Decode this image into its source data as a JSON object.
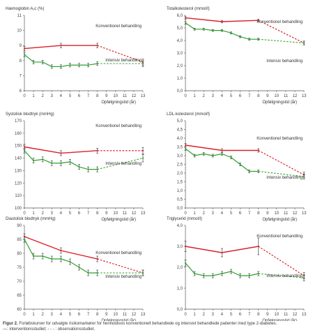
{
  "colors": {
    "konventionel": "#d9202a",
    "intensiv": "#2ca02c",
    "axis": "#555555",
    "errorbar": "#333333"
  },
  "caption": {
    "label": "Figur 2.",
    "text": "Forløbskurver for udvalgte risikomarkører for henholdsvis konventionelt behandlede og intensivt behandlede patienter med type 2-diabetes.",
    "legend_line2": "—: interventionsstudiet; - - - : observationsstudiet."
  },
  "chart_data": [
    {
      "type": "line",
      "title": "Hæmoglobin A₁c (%)",
      "xlabel": "Opfølgningstid (år)",
      "x_ticks": [
        0,
        1,
        2,
        3,
        4,
        5,
        6,
        7,
        8,
        9,
        10,
        11,
        12,
        13
      ],
      "xlim": [
        0,
        13
      ],
      "ylim": [
        6,
        11
      ],
      "y_ticks": [
        "6",
        "7",
        "8",
        "9",
        "10",
        "11"
      ],
      "y_tick_values": [
        6,
        7,
        8,
        9,
        10,
        11
      ],
      "series": [
        {
          "name": "Konventionel behandling",
          "key": "konv",
          "x": [
            0,
            4,
            8,
            13
          ],
          "y": [
            8.8,
            9.0,
            9.0,
            7.9
          ],
          "err": [
            0.15,
            0.15,
            0.15,
            0.2
          ],
          "solid_until": 8
        },
        {
          "name": "Intensiv behandling",
          "key": "int",
          "x": [
            0,
            1,
            2,
            3,
            4,
            5,
            6,
            7,
            8,
            13
          ],
          "y": [
            8.4,
            7.9,
            7.9,
            7.6,
            7.6,
            7.7,
            7.7,
            7.7,
            7.8,
            7.8
          ],
          "err": [
            0.15,
            0.12,
            0.12,
            0.12,
            0.12,
            0.12,
            0.12,
            0.12,
            0.12,
            0.2
          ],
          "solid_until": 8
        }
      ]
    },
    {
      "type": "line",
      "title": "Totalkolesterol (mmol/l)",
      "xlabel": "Opfølgningstid (år)",
      "x_ticks": [
        0,
        1,
        2,
        3,
        4,
        5,
        6,
        7,
        8,
        9,
        10,
        11,
        12,
        13
      ],
      "xlim": [
        0,
        13
      ],
      "ylim": [
        0,
        6.0
      ],
      "y_ticks": [
        "0,0",
        "1,0",
        "2,0",
        "3,0",
        "4,0",
        "5,0",
        "6,0"
      ],
      "y_tick_values": [
        0,
        1,
        2,
        3,
        4,
        5,
        6
      ],
      "series": [
        {
          "name": "Konventionel behandling",
          "key": "konv",
          "x": [
            0,
            4,
            8,
            13
          ],
          "y": [
            5.8,
            5.5,
            5.6,
            3.8
          ],
          "err": [
            0.1,
            0.1,
            0.1,
            0.15
          ],
          "solid_until": 8
        },
        {
          "name": "Intensiv behandling",
          "key": "int",
          "x": [
            0,
            1,
            2,
            3,
            4,
            5,
            6,
            7,
            8,
            13
          ],
          "y": [
            5.4,
            4.9,
            4.9,
            4.8,
            4.8,
            4.6,
            4.3,
            4.1,
            4.1,
            3.8
          ],
          "err": [
            0.12,
            0.08,
            0.08,
            0.08,
            0.08,
            0.08,
            0.08,
            0.08,
            0.08,
            0.15
          ],
          "solid_until": 8
        }
      ]
    },
    {
      "type": "line",
      "title": "Systolisk blodtryk (mmHg)",
      "xlabel": "Opfølgningstid (år)",
      "x_ticks": [
        0,
        1,
        2,
        3,
        4,
        5,
        6,
        7,
        8,
        9,
        10,
        11,
        12,
        13
      ],
      "xlim": [
        0,
        13
      ],
      "ylim": [
        100,
        170
      ],
      "y_ticks": [
        "100",
        "110",
        "120",
        "130",
        "140",
        "150",
        "160",
        "170"
      ],
      "y_tick_values": [
        100,
        110,
        120,
        130,
        140,
        150,
        160,
        170
      ],
      "series": [
        {
          "name": "Konventionel behandling",
          "key": "konv",
          "x": [
            0,
            4,
            8,
            13
          ],
          "y": [
            149,
            144,
            146,
            146
          ],
          "err": [
            2,
            2,
            2,
            2.5
          ],
          "solid_until": 8
        },
        {
          "name": "Intensiv behandling",
          "key": "int",
          "x": [
            0,
            1,
            2,
            3,
            4,
            5,
            6,
            7,
            8,
            13
          ],
          "y": [
            146,
            138,
            139,
            136,
            136,
            137,
            133,
            131,
            131,
            140
          ],
          "err": [
            2,
            2,
            2,
            2,
            2,
            2,
            2,
            2,
            2,
            3
          ],
          "solid_until": 8
        }
      ]
    },
    {
      "type": "line",
      "title": "LDL-kolesterol (mmol/l)",
      "xlabel": "Opfølgningstid (år)",
      "x_ticks": [
        0,
        1,
        2,
        3,
        4,
        5,
        6,
        7,
        8,
        9,
        10,
        11,
        12,
        13
      ],
      "xlim": [
        0,
        13
      ],
      "ylim": [
        0,
        5.0
      ],
      "y_ticks": [
        "0,0",
        "0,5",
        "1,0",
        "1,5",
        "2,0",
        "2,5",
        "3,0",
        "3,5",
        "4,0",
        "4,5",
        "5,0"
      ],
      "y_tick_values": [
        0,
        0.5,
        1,
        1.5,
        2,
        2.5,
        3,
        3.5,
        4,
        4.5,
        5
      ],
      "series": [
        {
          "name": "Konventionel behandling",
          "key": "konv",
          "x": [
            0,
            4,
            8,
            13
          ],
          "y": [
            3.6,
            3.3,
            3.3,
            1.9
          ],
          "err": [
            0.1,
            0.1,
            0.1,
            0.15
          ],
          "solid_until": 8
        },
        {
          "name": "Intensiv behandling",
          "key": "int",
          "x": [
            0,
            1,
            2,
            3,
            4,
            5,
            6,
            7,
            8,
            13
          ],
          "y": [
            3.4,
            3.0,
            3.1,
            3.0,
            3.1,
            2.9,
            2.5,
            2.1,
            2.1,
            1.8
          ],
          "err": [
            0.1,
            0.08,
            0.08,
            0.08,
            0.08,
            0.08,
            0.08,
            0.08,
            0.08,
            0.15
          ],
          "solid_until": 8
        }
      ]
    },
    {
      "type": "line",
      "title": "Diastolisk blodtryk (mmHg)",
      "xlabel": "Opfølgningstid (år)",
      "x_ticks": [
        0,
        1,
        2,
        3,
        4,
        5,
        6,
        7,
        8,
        9,
        10,
        11,
        12,
        13
      ],
      "xlim": [
        0,
        13
      ],
      "ylim": [
        60,
        90
      ],
      "y_ticks": [
        "60",
        "65",
        "70",
        "75",
        "80",
        "85",
        "90"
      ],
      "y_tick_values": [
        60,
        65,
        70,
        75,
        80,
        85,
        90
      ],
      "series": [
        {
          "name": "Konventionel behandling",
          "key": "konv",
          "x": [
            0,
            4,
            8,
            13
          ],
          "y": [
            86,
            81,
            78,
            73
          ],
          "err": [
            1,
            1,
            1,
            1
          ],
          "solid_until": 8
        },
        {
          "name": "Intensiv behandling",
          "key": "int",
          "x": [
            0,
            1,
            2,
            3,
            4,
            5,
            6,
            7,
            8,
            13
          ],
          "y": [
            85,
            79,
            79,
            78,
            78,
            77,
            75,
            73,
            73,
            73
          ],
          "err": [
            1,
            1,
            1,
            1,
            1,
            1,
            1,
            1,
            1,
            1
          ],
          "solid_until": 8
        }
      ]
    },
    {
      "type": "line",
      "title": "Triglycerid (mmol/l)",
      "xlabel": "Opfølgningstid (år)",
      "x_ticks": [
        0,
        1,
        2,
        3,
        4,
        5,
        6,
        7,
        8,
        9,
        10,
        11,
        12,
        13
      ],
      "xlim": [
        0,
        13
      ],
      "ylim": [
        0,
        4.0
      ],
      "y_ticks": [
        "0,0",
        "1,0",
        "2,0",
        "3,0",
        "4,0"
      ],
      "y_tick_values": [
        0,
        1,
        2,
        3,
        4
      ],
      "series": [
        {
          "name": "Konventionel behandling",
          "key": "konv",
          "x": [
            0,
            4,
            8,
            13
          ],
          "y": [
            3.0,
            2.7,
            3.0,
            1.6
          ],
          "err": [
            0.25,
            0.2,
            0.4,
            0.15
          ],
          "solid_until": 8
        },
        {
          "name": "Intensiv behandling",
          "key": "int",
          "x": [
            0,
            1,
            2,
            3,
            4,
            5,
            6,
            7,
            8,
            13
          ],
          "y": [
            2.2,
            1.7,
            1.6,
            1.6,
            1.7,
            1.8,
            1.6,
            1.6,
            1.7,
            1.5
          ],
          "err": [
            0.15,
            0.1,
            0.1,
            0.1,
            0.1,
            0.1,
            0.1,
            0.1,
            0.1,
            0.15
          ],
          "solid_until": 8
        }
      ]
    }
  ]
}
